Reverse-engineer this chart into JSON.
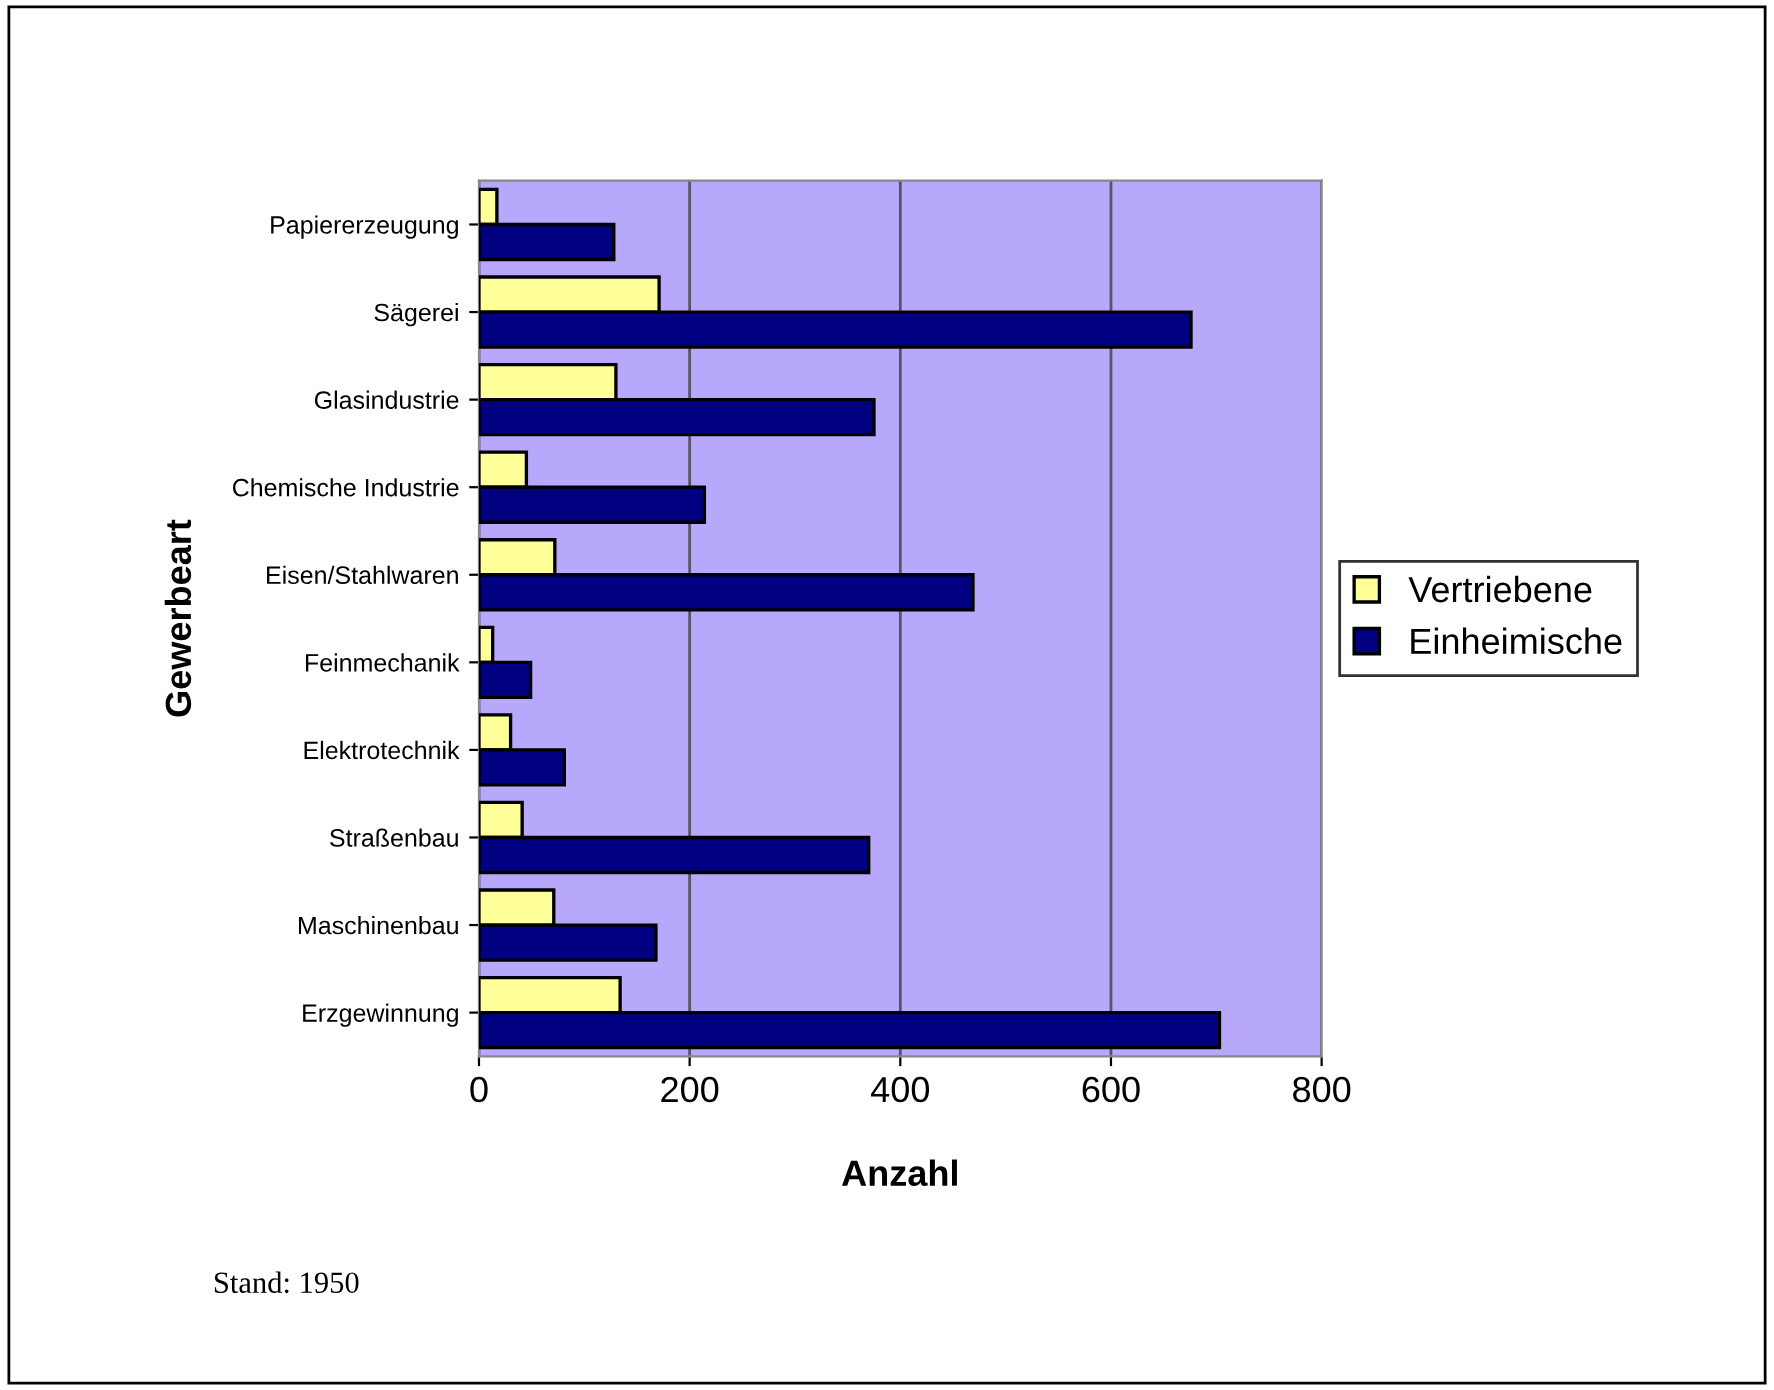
{
  "chart_data": {
    "type": "bar",
    "orientation": "horizontal",
    "xlabel": "Anzahl",
    "ylabel": "Gewerbeart",
    "categories": [
      "Papiererzeugung",
      "Sägerei",
      "Glasindustrie",
      "Chemische Industrie",
      "Eisen/Stahlwaren",
      "Feinmechanik",
      "Elektrotechnik",
      "Straßenbau",
      "Maschinenbau",
      "Erzgewinnung"
    ],
    "series": [
      {
        "name": "Vertriebene",
        "color": "#ffff99",
        "values": [
          17,
          171,
          130,
          45,
          72,
          13,
          30,
          41,
          71,
          134
        ]
      },
      {
        "name": "Einheimische",
        "color": "#000080",
        "values": [
          128,
          676,
          375,
          214,
          469,
          49,
          81,
          370,
          168,
          703
        ]
      }
    ],
    "xlim": [
      0,
      800
    ],
    "xticks": [
      0,
      200,
      400,
      600,
      800
    ],
    "grid": "x",
    "legend": "right",
    "annotations": [
      "Stand: 1950"
    ]
  }
}
